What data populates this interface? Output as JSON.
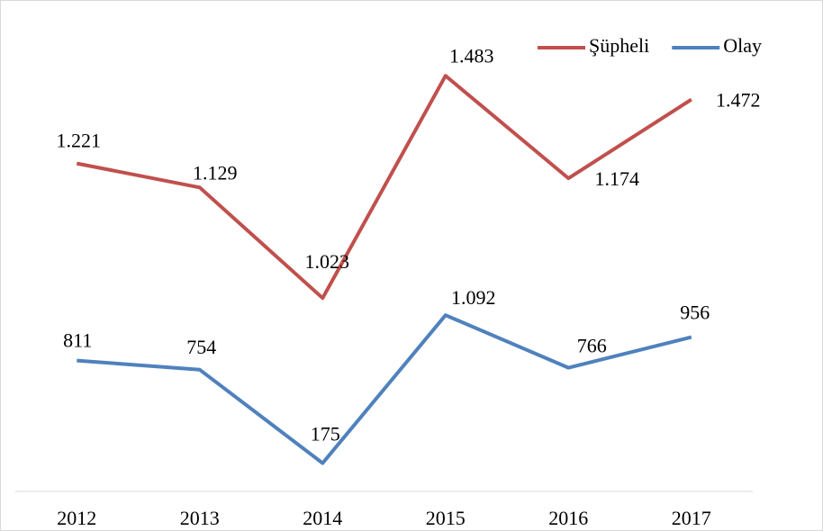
{
  "chart_data": {
    "type": "line",
    "stacked": true,
    "categories": [
      "2012",
      "2013",
      "2014",
      "2015",
      "2016",
      "2017"
    ],
    "series": [
      {
        "name": "Olay",
        "color": "#4f81bd",
        "values": [
          811,
          754,
          175,
          1092,
          766,
          956
        ],
        "value_labels": [
          "811",
          "754",
          "175",
          "1.092",
          "766",
          "956"
        ]
      },
      {
        "name": "Şüpheli",
        "color": "#c0504d",
        "values": [
          1221,
          1129,
          1023,
          1483,
          1174,
          1472
        ],
        "value_labels": [
          "1.221",
          "1.129",
          "1.023",
          "1.483",
          "1.174",
          "1.472"
        ]
      }
    ],
    "ylim": [
      0,
      3000
    ],
    "legend": "top-right"
  }
}
